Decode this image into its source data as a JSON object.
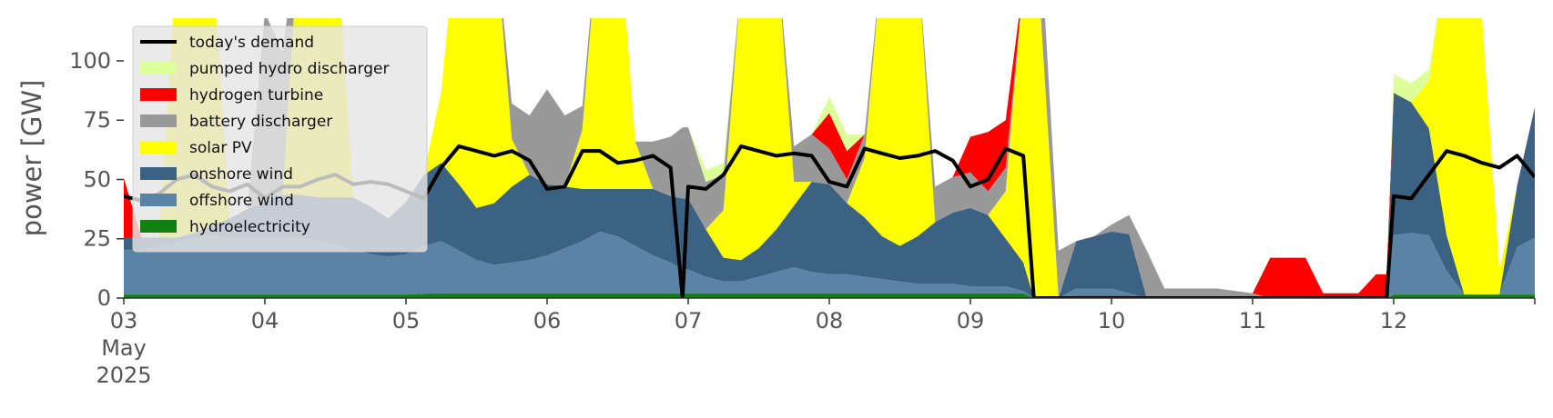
{
  "chart_data": {
    "type": "area",
    "title": "",
    "xlabel": "",
    "ylabel": "power [GW]",
    "x_axis": {
      "unit": "day",
      "range": [
        3,
        13
      ],
      "ticks": [
        {
          "value": 3,
          "label": "03",
          "sublabel_1": "May",
          "sublabel_2": "2025"
        },
        {
          "value": 4,
          "label": "04"
        },
        {
          "value": 5,
          "label": "05"
        },
        {
          "value": 6,
          "label": "06"
        },
        {
          "value": 7,
          "label": "07"
        },
        {
          "value": 8,
          "label": "08"
        },
        {
          "value": 9,
          "label": "09"
        },
        {
          "value": 10,
          "label": "10"
        },
        {
          "value": 11,
          "label": "11"
        },
        {
          "value": 12,
          "label": "12"
        }
      ]
    },
    "ylim": [
      0,
      118
    ],
    "yticks": [
      0,
      25,
      50,
      75,
      100
    ],
    "grid": false,
    "legend_position": "top-left",
    "x": [
      3.0,
      3.125,
      3.25,
      3.375,
      3.5,
      3.625,
      3.75,
      3.875,
      4.0,
      4.125,
      4.25,
      4.375,
      4.5,
      4.625,
      4.75,
      4.875,
      5.0,
      5.125,
      5.25,
      5.375,
      5.5,
      5.625,
      5.75,
      5.875,
      6.0,
      6.125,
      6.25,
      6.375,
      6.5,
      6.625,
      6.75,
      6.875,
      6.96,
      7.0,
      7.125,
      7.25,
      7.375,
      7.5,
      7.625,
      7.75,
      7.875,
      8.0,
      8.125,
      8.25,
      8.375,
      8.5,
      8.625,
      8.75,
      8.875,
      9.0,
      9.125,
      9.25,
      9.375,
      9.45,
      9.5,
      9.625,
      9.75,
      9.875,
      10.0,
      10.125,
      10.25,
      10.375,
      10.5,
      10.625,
      10.75,
      10.875,
      11.0,
      11.125,
      11.25,
      11.375,
      11.5,
      11.625,
      11.75,
      11.875,
      11.95,
      12.0,
      12.125,
      12.25,
      12.375,
      12.5,
      12.625,
      12.75,
      12.875,
      13.0
    ],
    "series": [
      {
        "name": "hydroelectricity",
        "color": "#108010",
        "values": [
          1.5,
          1.5,
          1.5,
          1.5,
          1.5,
          1.5,
          1.5,
          1.5,
          1.5,
          1.5,
          1.5,
          1.5,
          1.5,
          1.5,
          1.5,
          1.5,
          1.5,
          1.8,
          2,
          2,
          2,
          2,
          2,
          2,
          2,
          2,
          2,
          2,
          2,
          2,
          2,
          2,
          2,
          2,
          2,
          2,
          2,
          2,
          2,
          2,
          2,
          2,
          2,
          2,
          2,
          2,
          2,
          2,
          2,
          2,
          2,
          2,
          2,
          0,
          0,
          0,
          1,
          1,
          1,
          1,
          0,
          0,
          0,
          0,
          0,
          0,
          0,
          0,
          0,
          0,
          0,
          0,
          0,
          0,
          0,
          1.5,
          1.5,
          1.5,
          1.5,
          1.5,
          1.5,
          1.5,
          1.5,
          1.5
        ]
      },
      {
        "name": "offshore wind",
        "color": "#5b83a6",
        "values": [
          19,
          19,
          20,
          22,
          24,
          25,
          24,
          24,
          24,
          24,
          24,
          23,
          21,
          19,
          17,
          16,
          17,
          20,
          22,
          18,
          14,
          12,
          13,
          14,
          16,
          19,
          22,
          26,
          24,
          20,
          16,
          13,
          10,
          10,
          7,
          5,
          5,
          7,
          9,
          11,
          9,
          8,
          8,
          7,
          6,
          5,
          4,
          4,
          4,
          3,
          3,
          3,
          1,
          0,
          0,
          0,
          3,
          3,
          3,
          1,
          0,
          0,
          0,
          0,
          0,
          0,
          0,
          0,
          0,
          0,
          0,
          0,
          0,
          0,
          0,
          25,
          26,
          25,
          10,
          0,
          0,
          0,
          20,
          24
        ]
      },
      {
        "name": "onshore wind",
        "color": "#3b6283",
        "values": [
          5,
          5,
          4,
          2,
          2,
          4,
          8,
          12,
          15,
          18,
          18,
          18,
          20,
          22,
          20,
          16,
          22,
          30,
          33,
          28,
          22,
          26,
          32,
          36,
          30,
          26,
          22,
          18,
          20,
          24,
          28,
          28,
          30,
          30,
          20,
          10,
          9,
          12,
          18,
          26,
          38,
          38,
          30,
          25,
          18,
          15,
          20,
          26,
          30,
          33,
          30,
          20,
          12,
          0,
          0,
          0,
          20,
          22,
          24,
          25,
          0,
          0,
          0,
          0,
          0,
          0,
          0,
          0,
          0,
          0,
          0,
          0,
          0,
          0,
          0,
          60,
          55,
          45,
          15,
          0,
          0,
          0,
          26,
          55
        ]
      },
      {
        "name": "solar PV",
        "color": "#ffff00",
        "values": [
          0,
          0,
          0,
          118,
          118,
          118,
          0,
          0,
          0,
          0,
          118,
          118,
          118,
          0,
          0,
          0,
          0,
          0,
          30,
          118,
          118,
          118,
          20,
          0,
          0,
          0,
          25,
          118,
          118,
          20,
          0,
          0,
          0,
          0,
          0,
          20,
          118,
          118,
          118,
          10,
          0,
          0,
          0,
          25,
          118,
          118,
          118,
          0,
          0,
          0,
          0,
          20,
          118,
          118,
          118,
          0,
          0,
          0,
          0,
          0,
          0,
          0,
          0,
          0,
          0,
          0,
          0,
          0,
          0,
          0,
          0,
          0,
          0,
          0,
          0,
          0,
          0,
          20,
          118,
          118,
          118,
          10,
          0,
          0
        ]
      },
      {
        "name": "battery discharger",
        "color": "#999999",
        "values": [
          0,
          0,
          0,
          0,
          0,
          0,
          0,
          0,
          80,
          60,
          0,
          0,
          0,
          0,
          0,
          0,
          0,
          0,
          0,
          0,
          0,
          0,
          15,
          25,
          40,
          30,
          10,
          0,
          0,
          0,
          20,
          25,
          30,
          30,
          20,
          15,
          0,
          0,
          0,
          15,
          20,
          15,
          10,
          10,
          0,
          0,
          0,
          15,
          15,
          15,
          10,
          10,
          0,
          30,
          30,
          20,
          0,
          0,
          3,
          8,
          20,
          4,
          4,
          4,
          4,
          3,
          2,
          0,
          0,
          0,
          0,
          0,
          0,
          0,
          0,
          0,
          0,
          0,
          0,
          0,
          0,
          0,
          0,
          0
        ]
      },
      {
        "name": "hydrogen turbine",
        "color": "#ff0000",
        "values": [
          25,
          0,
          0,
          0,
          0,
          0,
          0,
          0,
          0,
          0,
          0,
          0,
          0,
          0,
          0,
          0,
          0,
          0,
          0,
          0,
          0,
          0,
          0,
          0,
          0,
          0,
          0,
          0,
          0,
          0,
          0,
          0,
          0,
          0,
          0,
          0,
          0,
          0,
          0,
          0,
          0,
          15,
          12,
          0,
          0,
          0,
          0,
          0,
          0,
          15,
          25,
          20,
          0,
          0,
          0,
          0,
          0,
          0,
          0,
          0,
          0,
          0,
          0,
          0,
          0,
          0,
          0,
          17,
          17,
          17,
          2,
          2,
          2,
          10,
          10,
          0,
          0,
          0,
          0,
          0,
          0,
          0,
          0,
          0
        ]
      },
      {
        "name": "pumped hydro discharger",
        "color": "#ddff99",
        "values": [
          0,
          0,
          0,
          0,
          0,
          0,
          0,
          0,
          0,
          0,
          0,
          0,
          0,
          0,
          0,
          0,
          0,
          0,
          0,
          0,
          0,
          0,
          0,
          0,
          0,
          0,
          0,
          0,
          0,
          0,
          0,
          0,
          0,
          0,
          5,
          5,
          0,
          0,
          0,
          0,
          0,
          7,
          7,
          0,
          0,
          0,
          0,
          0,
          0,
          0,
          0,
          0,
          0,
          0,
          0,
          0,
          0,
          0,
          0,
          0,
          0,
          0,
          0,
          0,
          0,
          0,
          0,
          0,
          0,
          0,
          0,
          0,
          0,
          0,
          0,
          8,
          8,
          5,
          0,
          0,
          0,
          0,
          0,
          0
        ]
      },
      {
        "name": "today's demand",
        "color": "#000000",
        "line": true,
        "values": [
          43,
          41,
          44,
          50,
          52,
          47,
          45,
          48,
          42,
          47,
          47,
          50,
          52,
          48,
          49,
          48,
          45,
          42,
          55,
          64,
          62,
          60,
          62,
          58,
          46,
          47,
          62,
          62,
          57,
          58,
          60,
          55,
          0,
          47,
          46,
          52,
          64,
          62,
          60,
          61,
          60,
          49,
          47,
          63,
          61,
          59,
          60,
          62,
          58,
          47,
          50,
          63,
          60,
          0,
          0,
          0,
          0,
          0,
          0,
          0,
          0,
          0,
          0,
          0,
          0,
          0,
          0,
          0,
          0,
          0,
          0,
          0,
          0,
          0,
          0,
          43,
          42,
          52,
          62,
          60,
          57,
          55,
          60,
          51
        ]
      }
    ]
  }
}
